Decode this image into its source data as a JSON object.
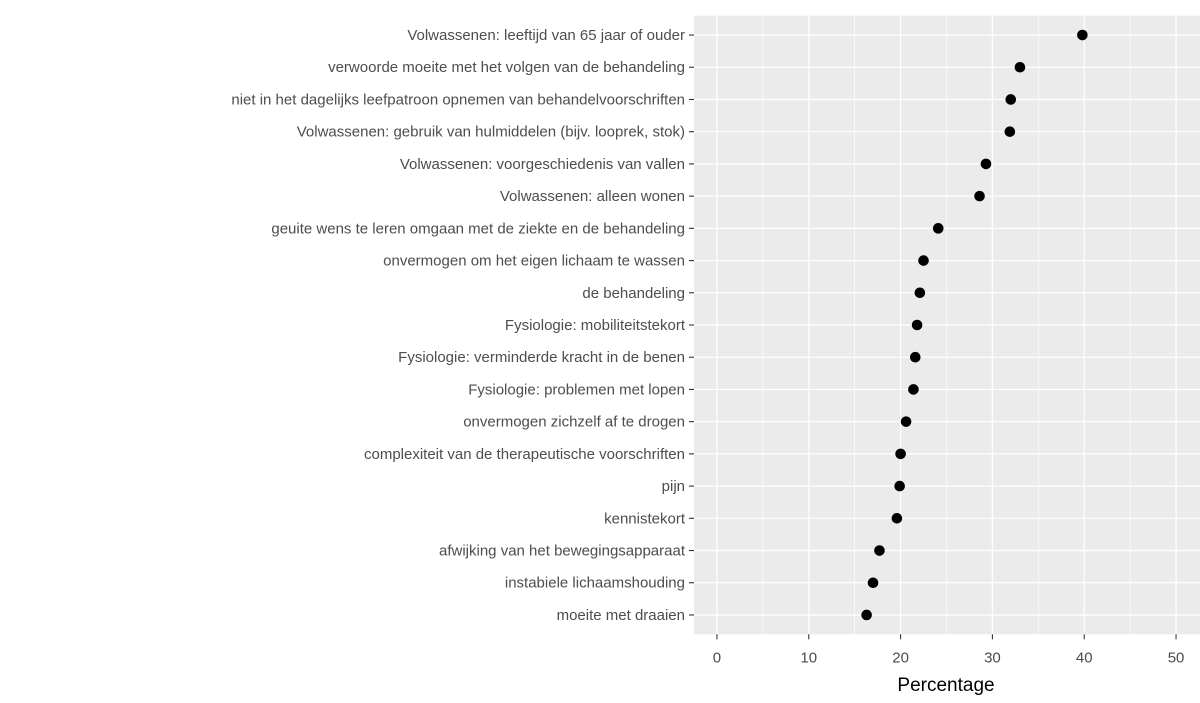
{
  "chart_data": {
    "type": "dot",
    "x_label": "Percentage",
    "categories": [
      "Volwassenen: leeftijd van 65 jaar of ouder",
      "verwoorde moeite met het volgen van de behandeling",
      "niet in het dagelijks leefpatroon opnemen van behandelvoorschriften",
      "Volwassenen: gebruik van hulmiddelen (bijv. looprek, stok)",
      "Volwassenen: voorgeschiedenis van vallen",
      "Volwassenen: alleen wonen",
      "geuite wens te leren omgaan met de ziekte en de behandeling",
      "onvermogen om het eigen lichaam te wassen",
      "de behandeling",
      "Fysiologie: mobiliteitstekort",
      "Fysiologie: verminderde kracht in de benen",
      "Fysiologie: problemen met lopen",
      "onvermogen zichzelf af te drogen",
      "complexiteit van de therapeutische voorschriften",
      "pijn",
      "kennistekort",
      "afwijking van het bewegingsapparaat",
      "instabiele lichaamshouding",
      "moeite met draaien"
    ],
    "values": [
      39.8,
      33.0,
      32.0,
      31.9,
      29.3,
      28.6,
      24.1,
      22.5,
      22.1,
      21.8,
      21.6,
      21.4,
      20.6,
      20.0,
      19.9,
      19.6,
      17.7,
      17.0,
      16.3
    ],
    "color": "#000000",
    "xlim": [
      -2.5,
      52.5
    ],
    "xticks": [
      0,
      10,
      20,
      30,
      40,
      50
    ],
    "grid": true
  }
}
